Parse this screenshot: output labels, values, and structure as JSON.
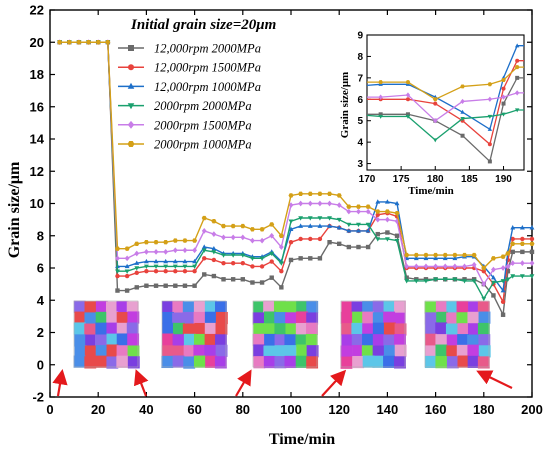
{
  "chart_data": {
    "type": "line",
    "title": "Initial grain size=20μm",
    "xlabel": "Time/min",
    "ylabel": "Grain size/μm",
    "xlim": [
      0,
      200
    ],
    "ylim": [
      -2,
      22
    ],
    "xticks": [
      0,
      20,
      40,
      60,
      80,
      100,
      120,
      140,
      160,
      180,
      200
    ],
    "yticks": [
      -2,
      0,
      2,
      4,
      6,
      8,
      10,
      12,
      14,
      16,
      18,
      20,
      22
    ],
    "grid": false,
    "legend_position": "top-center",
    "annotation": "EBSD grain maps at selected times (arrows)",
    "annotation_arrow_targets_x": [
      5,
      36,
      83,
      122,
      178
    ],
    "series": [
      {
        "name": "12,000rpm 2000MPa",
        "color": "#6a6a6a",
        "marker": "square",
        "points": [
          [
            4,
            20
          ],
          [
            8,
            20
          ],
          [
            12,
            20
          ],
          [
            16,
            20
          ],
          [
            20,
            20
          ],
          [
            24,
            20
          ],
          [
            28,
            4.6
          ],
          [
            32,
            4.6
          ],
          [
            36,
            4.8
          ],
          [
            40,
            4.9
          ],
          [
            44,
            4.9
          ],
          [
            48,
            4.9
          ],
          [
            52,
            4.9
          ],
          [
            56,
            4.9
          ],
          [
            60,
            4.9
          ],
          [
            64,
            5.6
          ],
          [
            68,
            5.5
          ],
          [
            72,
            5.3
          ],
          [
            76,
            5.3
          ],
          [
            80,
            5.3
          ],
          [
            84,
            5.1
          ],
          [
            88,
            5.1
          ],
          [
            92,
            5.4
          ],
          [
            96,
            4.8
          ],
          [
            100,
            6.5
          ],
          [
            104,
            6.6
          ],
          [
            108,
            6.6
          ],
          [
            112,
            6.6
          ],
          [
            116,
            7.6
          ],
          [
            120,
            7.5
          ],
          [
            124,
            7.3
          ],
          [
            128,
            7.3
          ],
          [
            132,
            7.3
          ],
          [
            136,
            8.1
          ],
          [
            140,
            8.2
          ],
          [
            144,
            8.0
          ],
          [
            148,
            5.4
          ],
          [
            152,
            5.3
          ],
          [
            156,
            5.3
          ],
          [
            160,
            5.3
          ],
          [
            164,
            5.3
          ],
          [
            168,
            5.3
          ],
          [
            172,
            5.3
          ],
          [
            176,
            5.3
          ],
          [
            180,
            5.0
          ],
          [
            184,
            4.3
          ],
          [
            188,
            3.1
          ],
          [
            190,
            5.8
          ],
          [
            192,
            7.0
          ],
          [
            196,
            7.0
          ],
          [
            200,
            7.0
          ]
        ]
      },
      {
        "name": "12,000rpm 1500MPa",
        "color": "#e8423c",
        "marker": "circle",
        "points": [
          [
            4,
            20
          ],
          [
            8,
            20
          ],
          [
            12,
            20
          ],
          [
            16,
            20
          ],
          [
            20,
            20
          ],
          [
            24,
            20
          ],
          [
            28,
            5.5
          ],
          [
            32,
            5.5
          ],
          [
            36,
            5.7
          ],
          [
            40,
            5.8
          ],
          [
            44,
            5.8
          ],
          [
            48,
            5.8
          ],
          [
            52,
            5.8
          ],
          [
            56,
            5.8
          ],
          [
            60,
            5.8
          ],
          [
            64,
            6.6
          ],
          [
            68,
            6.5
          ],
          [
            72,
            6.3
          ],
          [
            76,
            6.3
          ],
          [
            80,
            6.3
          ],
          [
            84,
            6.1
          ],
          [
            88,
            6.1
          ],
          [
            92,
            6.4
          ],
          [
            96,
            5.8
          ],
          [
            100,
            7.6
          ],
          [
            104,
            7.8
          ],
          [
            108,
            7.8
          ],
          [
            112,
            7.8
          ],
          [
            116,
            8.6
          ],
          [
            120,
            8.5
          ],
          [
            124,
            8.3
          ],
          [
            128,
            8.3
          ],
          [
            132,
            8.3
          ],
          [
            136,
            9.3
          ],
          [
            140,
            9.4
          ],
          [
            144,
            9.2
          ],
          [
            148,
            6.0
          ],
          [
            152,
            6.0
          ],
          [
            156,
            6.0
          ],
          [
            160,
            6.0
          ],
          [
            164,
            6.0
          ],
          [
            168,
            6.0
          ],
          [
            172,
            6.0
          ],
          [
            176,
            6.0
          ],
          [
            180,
            5.8
          ],
          [
            184,
            5.0
          ],
          [
            188,
            3.9
          ],
          [
            190,
            6.5
          ],
          [
            192,
            7.8
          ],
          [
            196,
            7.8
          ],
          [
            200,
            7.8
          ]
        ]
      },
      {
        "name": "12,000rpm 1000MPa",
        "color": "#1d6fc9",
        "marker": "triangle",
        "points": [
          [
            4,
            20
          ],
          [
            8,
            20
          ],
          [
            12,
            20
          ],
          [
            16,
            20
          ],
          [
            20,
            20
          ],
          [
            24,
            20
          ],
          [
            28,
            6.1
          ],
          [
            32,
            6.1
          ],
          [
            36,
            6.3
          ],
          [
            40,
            6.4
          ],
          [
            44,
            6.4
          ],
          [
            48,
            6.4
          ],
          [
            52,
            6.4
          ],
          [
            56,
            6.4
          ],
          [
            60,
            6.4
          ],
          [
            64,
            7.3
          ],
          [
            68,
            7.2
          ],
          [
            72,
            6.9
          ],
          [
            76,
            6.9
          ],
          [
            80,
            6.9
          ],
          [
            84,
            6.7
          ],
          [
            88,
            6.7
          ],
          [
            92,
            7.0
          ],
          [
            96,
            6.4
          ],
          [
            100,
            8.4
          ],
          [
            104,
            8.6
          ],
          [
            108,
            8.6
          ],
          [
            112,
            8.6
          ],
          [
            116,
            8.6
          ],
          [
            120,
            8.5
          ],
          [
            124,
            8.3
          ],
          [
            128,
            8.3
          ],
          [
            132,
            8.3
          ],
          [
            136,
            10.1
          ],
          [
            140,
            10.1
          ],
          [
            144,
            10.0
          ],
          [
            148,
            6.6
          ],
          [
            152,
            6.6
          ],
          [
            156,
            6.6
          ],
          [
            160,
            6.6
          ],
          [
            164,
            6.6
          ],
          [
            168,
            6.6
          ],
          [
            172,
            6.7
          ],
          [
            176,
            6.7
          ],
          [
            180,
            6.1
          ],
          [
            184,
            5.4
          ],
          [
            188,
            4.6
          ],
          [
            190,
            7.0
          ],
          [
            192,
            8.5
          ],
          [
            196,
            8.5
          ],
          [
            200,
            8.5
          ]
        ]
      },
      {
        "name": "2000rpm 2000MPa",
        "color": "#1aa06e",
        "marker": "triangle-down",
        "points": [
          [
            4,
            20
          ],
          [
            8,
            20
          ],
          [
            12,
            20
          ],
          [
            16,
            20
          ],
          [
            20,
            20
          ],
          [
            24,
            20
          ],
          [
            28,
            5.8
          ],
          [
            32,
            5.8
          ],
          [
            36,
            6.0
          ],
          [
            40,
            6.1
          ],
          [
            44,
            6.1
          ],
          [
            48,
            6.1
          ],
          [
            52,
            6.1
          ],
          [
            56,
            6.1
          ],
          [
            60,
            6.1
          ],
          [
            64,
            7.1
          ],
          [
            68,
            7.0
          ],
          [
            72,
            6.8
          ],
          [
            76,
            6.8
          ],
          [
            80,
            6.8
          ],
          [
            84,
            6.6
          ],
          [
            88,
            6.6
          ],
          [
            92,
            6.9
          ],
          [
            96,
            6.3
          ],
          [
            100,
            8.9
          ],
          [
            104,
            9.1
          ],
          [
            108,
            9.1
          ],
          [
            112,
            9.1
          ],
          [
            116,
            9.1
          ],
          [
            120,
            9.0
          ],
          [
            124,
            8.7
          ],
          [
            128,
            8.7
          ],
          [
            132,
            8.7
          ],
          [
            136,
            7.8
          ],
          [
            140,
            7.8
          ],
          [
            144,
            7.7
          ],
          [
            148,
            5.2
          ],
          [
            152,
            5.2
          ],
          [
            156,
            5.2
          ],
          [
            160,
            5.3
          ],
          [
            164,
            5.3
          ],
          [
            168,
            5.3
          ],
          [
            172,
            5.2
          ],
          [
            176,
            5.2
          ],
          [
            180,
            4.1
          ],
          [
            184,
            5.1
          ],
          [
            188,
            5.2
          ],
          [
            190,
            5.3
          ],
          [
            192,
            5.5
          ],
          [
            196,
            5.5
          ],
          [
            200,
            5.5
          ]
        ]
      },
      {
        "name": "2000rpm 1500MPa",
        "color": "#c87de8",
        "marker": "diamond",
        "points": [
          [
            4,
            20
          ],
          [
            8,
            20
          ],
          [
            12,
            20
          ],
          [
            16,
            20
          ],
          [
            20,
            20
          ],
          [
            24,
            20
          ],
          [
            28,
            6.6
          ],
          [
            32,
            6.6
          ],
          [
            36,
            6.9
          ],
          [
            40,
            7.0
          ],
          [
            44,
            7.0
          ],
          [
            48,
            7.0
          ],
          [
            52,
            7.1
          ],
          [
            56,
            7.1
          ],
          [
            60,
            7.1
          ],
          [
            64,
            8.3
          ],
          [
            68,
            8.1
          ],
          [
            72,
            7.9
          ],
          [
            76,
            7.9
          ],
          [
            80,
            7.9
          ],
          [
            84,
            7.7
          ],
          [
            88,
            7.7
          ],
          [
            92,
            8.0
          ],
          [
            96,
            7.3
          ],
          [
            100,
            9.9
          ],
          [
            104,
            10.0
          ],
          [
            108,
            10.0
          ],
          [
            112,
            10.0
          ],
          [
            116,
            10.0
          ],
          [
            120,
            9.9
          ],
          [
            124,
            9.5
          ],
          [
            128,
            9.5
          ],
          [
            132,
            9.5
          ],
          [
            136,
            9.0
          ],
          [
            140,
            9.0
          ],
          [
            144,
            8.9
          ],
          [
            148,
            6.1
          ],
          [
            152,
            6.1
          ],
          [
            156,
            6.1
          ],
          [
            160,
            6.1
          ],
          [
            164,
            6.1
          ],
          [
            168,
            6.1
          ],
          [
            172,
            6.1
          ],
          [
            176,
            6.2
          ],
          [
            180,
            5.0
          ],
          [
            184,
            5.9
          ],
          [
            188,
            6.0
          ],
          [
            190,
            6.1
          ],
          [
            192,
            6.3
          ],
          [
            196,
            6.3
          ],
          [
            200,
            6.3
          ]
        ]
      },
      {
        "name": "2000rpm 1000MPa",
        "color": "#d4a017",
        "marker": "hexagon",
        "points": [
          [
            4,
            20
          ],
          [
            8,
            20
          ],
          [
            12,
            20
          ],
          [
            16,
            20
          ],
          [
            20,
            20
          ],
          [
            24,
            20
          ],
          [
            28,
            7.2
          ],
          [
            32,
            7.2
          ],
          [
            36,
            7.5
          ],
          [
            40,
            7.6
          ],
          [
            44,
            7.6
          ],
          [
            48,
            7.6
          ],
          [
            52,
            7.7
          ],
          [
            56,
            7.7
          ],
          [
            60,
            7.7
          ],
          [
            64,
            9.1
          ],
          [
            68,
            8.9
          ],
          [
            72,
            8.6
          ],
          [
            76,
            8.6
          ],
          [
            80,
            8.6
          ],
          [
            84,
            8.4
          ],
          [
            88,
            8.4
          ],
          [
            92,
            8.7
          ],
          [
            96,
            8.0
          ],
          [
            100,
            10.5
          ],
          [
            104,
            10.6
          ],
          [
            108,
            10.6
          ],
          [
            112,
            10.6
          ],
          [
            116,
            10.6
          ],
          [
            120,
            10.5
          ],
          [
            124,
            9.8
          ],
          [
            128,
            9.8
          ],
          [
            132,
            9.8
          ],
          [
            136,
            9.5
          ],
          [
            140,
            9.5
          ],
          [
            144,
            9.4
          ],
          [
            148,
            6.8
          ],
          [
            152,
            6.8
          ],
          [
            156,
            6.8
          ],
          [
            160,
            6.8
          ],
          [
            164,
            6.8
          ],
          [
            168,
            6.8
          ],
          [
            172,
            6.8
          ],
          [
            176,
            6.8
          ],
          [
            180,
            6.0
          ],
          [
            184,
            6.6
          ],
          [
            188,
            6.7
          ],
          [
            190,
            6.9
          ],
          [
            192,
            7.5
          ],
          [
            196,
            7.5
          ],
          [
            200,
            7.5
          ]
        ]
      }
    ],
    "inset": {
      "xlabel": "Time/min",
      "ylabel": "Grain size/μm",
      "xlim": [
        170,
        193
      ],
      "ylim": [
        2.7,
        9
      ],
      "xticks": [
        170,
        175,
        180,
        185,
        190
      ],
      "yticks": [
        3,
        4,
        5,
        6,
        7,
        8,
        9
      ]
    }
  }
}
